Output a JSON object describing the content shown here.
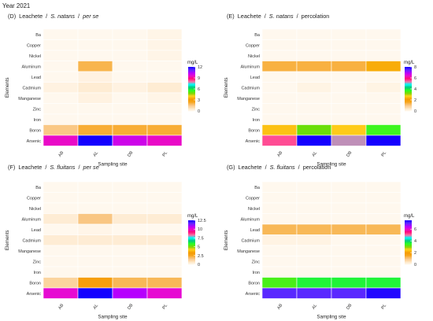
{
  "figure_title": "Year 2021",
  "axis_labels": {
    "x": "Sampling site",
    "y": "Elements"
  },
  "legend_unit": "mg/L",
  "colors": {
    "heat_scale": [
      "#fff8ee",
      "#fde0b8",
      "#f9c47e",
      "#f7a51c",
      "#f59a00",
      "#ffd21c",
      "#7ad600",
      "#28ff28",
      "#00c87a",
      "#00ffff",
      "#ff6aa0",
      "#ff0a78",
      "#e60ad2",
      "#b400ff",
      "#5a28ff",
      "#1400ff"
    ]
  },
  "chart_data": [
    {
      "id": "D",
      "type": "heatmap",
      "title_parts": [
        "(D)",
        "Leachete",
        "/",
        "S. natans",
        "/",
        "per se"
      ],
      "rows": [
        "Ba",
        "Copper",
        "Nickel",
        "Aluminum",
        "Lead",
        "Cadmium",
        "Manganese",
        "Zinc",
        "Iron",
        "Boron",
        "Arsenic"
      ],
      "columns": [
        "AB",
        "AL",
        "DB",
        "PL"
      ],
      "values": [
        [
          0.0,
          0.0,
          0.0,
          0.1
        ],
        [
          0.0,
          0.0,
          0.0,
          0.1
        ],
        [
          0.0,
          0.0,
          0.0,
          0.1
        ],
        [
          0.0,
          2.0,
          0.0,
          0.0
        ],
        [
          0.0,
          0.2,
          0.0,
          0.0
        ],
        [
          0.2,
          0.4,
          0.2,
          0.4
        ],
        [
          0.0,
          0.2,
          0.0,
          0.1
        ],
        [
          0.0,
          0.0,
          0.0,
          0.0
        ],
        [
          0.0,
          0.0,
          0.0,
          0.0
        ],
        [
          1.5,
          2.2,
          2.2,
          2.2
        ],
        [
          9.5,
          12.0,
          10.0,
          9.5
        ]
      ],
      "legend_max": 12,
      "legend_ticks": [
        12,
        9,
        6,
        3,
        0
      ],
      "y_title": "Elements",
      "x_title": "Sampling site"
    },
    {
      "id": "E",
      "type": "heatmap",
      "title_parts": [
        "(E)",
        "Leachete",
        "/",
        "S. natans",
        "/",
        "percolation"
      ],
      "rows": [
        "Ba",
        "Copper",
        "Nickel",
        "Aluminum",
        "Lead",
        "Cadmium",
        "Manganese",
        "Zinc",
        "Iron",
        "Boron",
        "Arsenic"
      ],
      "columns": [
        "AB",
        "AL",
        "DB",
        "PL"
      ],
      "values": [
        [
          0.0,
          0.0,
          0.0,
          0.0
        ],
        [
          0.0,
          0.0,
          0.0,
          0.0
        ],
        [
          0.0,
          0.0,
          0.0,
          0.0
        ],
        [
          1.4,
          1.4,
          1.4,
          2.3
        ],
        [
          0.0,
          0.0,
          0.0,
          0.0
        ],
        [
          0.0,
          0.1,
          0.0,
          0.1
        ],
        [
          0.0,
          0.0,
          0.0,
          0.0
        ],
        [
          0.0,
          0.0,
          0.0,
          0.0
        ],
        [
          0.0,
          0.0,
          0.0,
          0.0
        ],
        [
          2.5,
          3.3,
          2.6,
          3.6
        ],
        [
          5.5,
          8.0,
          5.2,
          8.0
        ]
      ],
      "legend_max": 8,
      "legend_ticks": [
        8,
        6,
        4,
        2,
        0
      ],
      "y_title": "Elements",
      "x_title": "Sampling site"
    },
    {
      "id": "F",
      "type": "heatmap",
      "title_parts": [
        "(F)",
        "Leachete",
        "/",
        "S. fluitans",
        "/",
        "per se"
      ],
      "rows": [
        "Ba",
        "Copper",
        "Nickel",
        "Aluminum",
        "Lead",
        "Cadmium",
        "Manganese",
        "Zinc",
        "Iron",
        "Boron",
        "Arsenic"
      ],
      "columns": [
        "AB",
        "AL",
        "DB",
        "PL"
      ],
      "values": [
        [
          0.0,
          0.0,
          0.0,
          0.0
        ],
        [
          0.0,
          0.0,
          0.0,
          0.0
        ],
        [
          0.0,
          0.0,
          0.0,
          0.0
        ],
        [
          0.4,
          1.6,
          0.4,
          0.4
        ],
        [
          0.0,
          0.1,
          0.0,
          0.0
        ],
        [
          0.4,
          0.4,
          0.4,
          0.4
        ],
        [
          0.0,
          0.0,
          0.0,
          0.0
        ],
        [
          0.0,
          0.0,
          0.0,
          0.0
        ],
        [
          0.0,
          0.0,
          0.0,
          0.0
        ],
        [
          1.2,
          3.0,
          2.0,
          2.0
        ],
        [
          10.0,
          12.5,
          10.8,
          10.0
        ]
      ],
      "legend_max": 12.5,
      "legend_ticks": [
        12.5,
        10.0,
        7.5,
        5.0,
        2.5,
        0.0
      ],
      "y_title": "Elements",
      "x_title": "Sampling site"
    },
    {
      "id": "G",
      "type": "heatmap",
      "title_parts": [
        "(G)",
        "Leachete",
        "/",
        "S. fluitans",
        "/",
        "percolation"
      ],
      "rows": [
        "Ba",
        "Copper",
        "Nickel",
        "Aluminum",
        "Lead",
        "Cadmium",
        "Manganese",
        "Zinc",
        "Iron",
        "Boron",
        "Arsenic"
      ],
      "columns": [
        "AB",
        "AL",
        "DB",
        "PL"
      ],
      "values": [
        [
          0.0,
          0.0,
          0.0,
          0.0
        ],
        [
          0.0,
          0.0,
          0.0,
          0.0
        ],
        [
          0.0,
          0.0,
          0.0,
          0.0
        ],
        [
          0.0,
          0.0,
          0.0,
          0.0
        ],
        [
          1.2,
          1.2,
          1.2,
          1.2
        ],
        [
          0.1,
          0.1,
          0.0,
          0.0
        ],
        [
          0.0,
          0.0,
          0.0,
          0.0
        ],
        [
          0.0,
          0.0,
          0.0,
          0.0
        ],
        [
          0.0,
          0.0,
          0.0,
          0.0
        ],
        [
          3.3,
          3.6,
          3.6,
          3.6
        ],
        [
          7.0,
          7.0,
          7.0,
          7.4
        ]
      ],
      "legend_max": 7.5,
      "legend_ticks": [
        6,
        4,
        2,
        0
      ],
      "y_title": "Elements",
      "x_title": "Sampling site"
    }
  ]
}
